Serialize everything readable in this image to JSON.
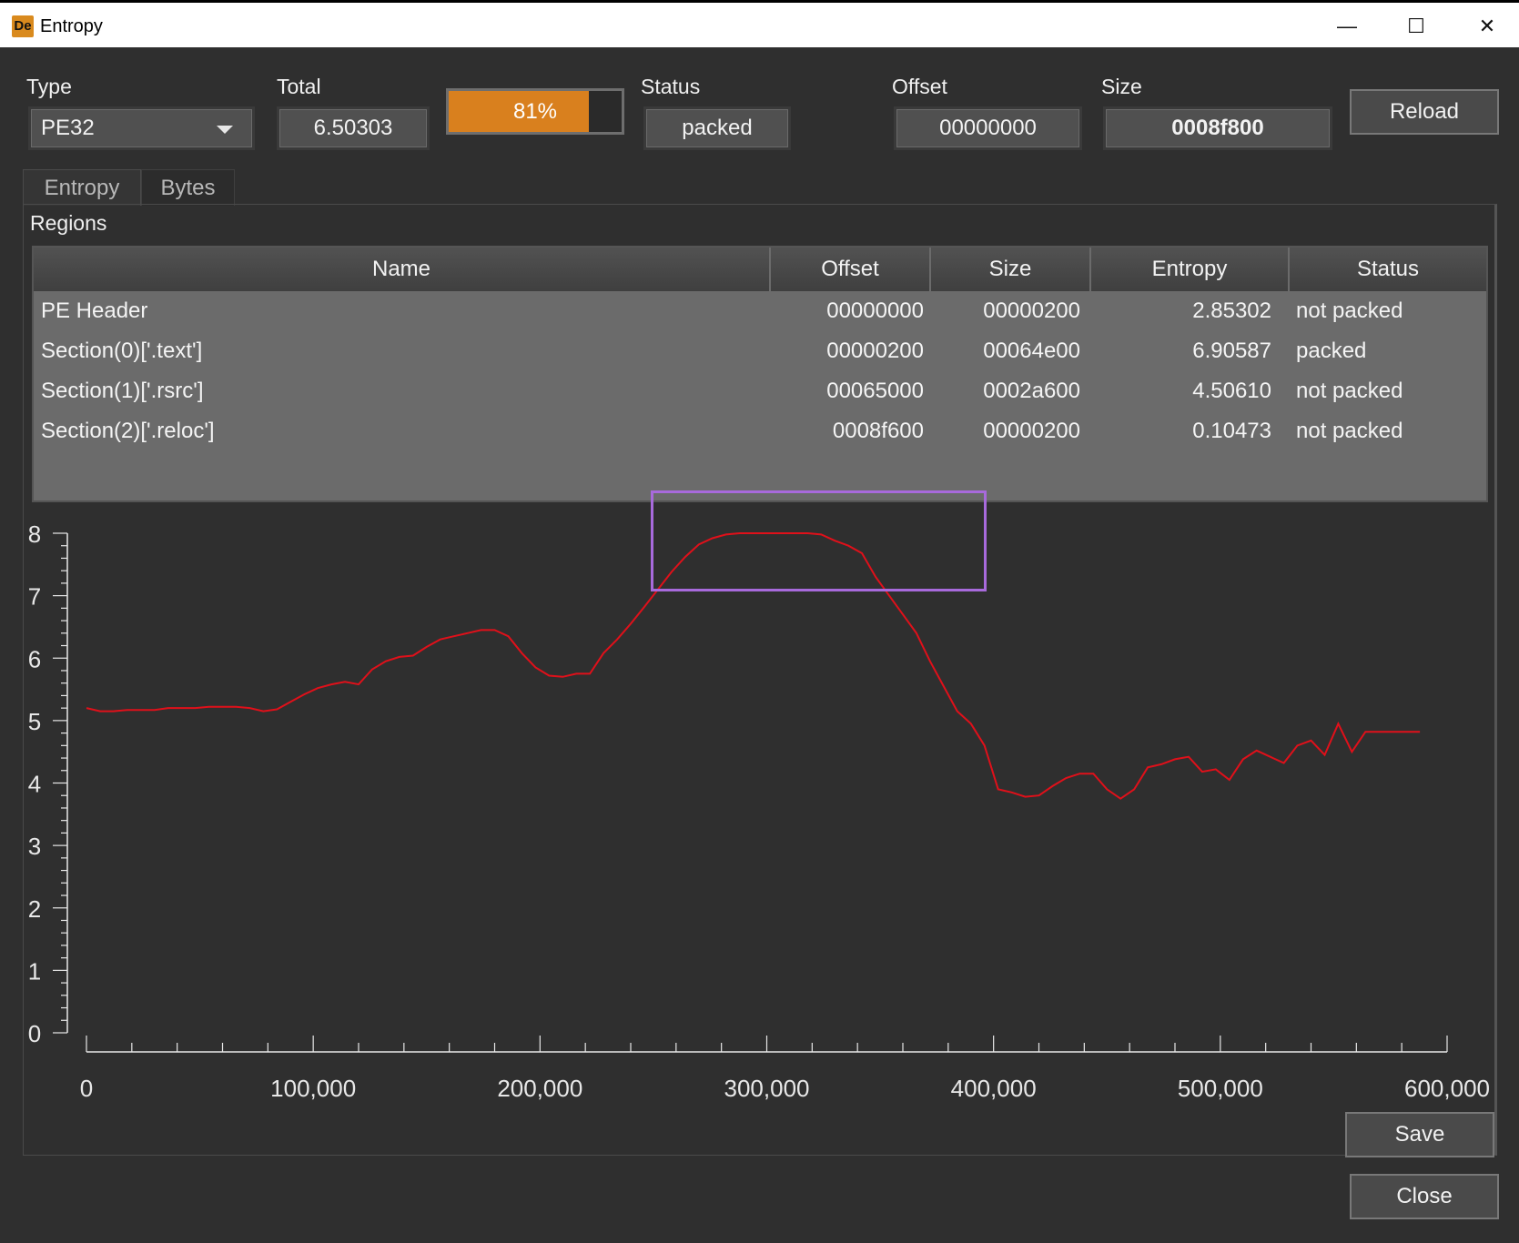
{
  "window": {
    "title": "Entropy",
    "app_icon_text": "De",
    "minimize_icon": "minimize-icon",
    "maximize_icon": "maximize-icon",
    "close_icon": "close-icon"
  },
  "top": {
    "type_label": "Type",
    "type_value": "PE32",
    "total_label": "Total",
    "total_value": "6.50303",
    "progress_value": 81,
    "progress_text": "81%",
    "status_label": "Status",
    "status_value": "packed",
    "offset_label": "Offset",
    "offset_value": "00000000",
    "size_label": "Size",
    "size_value": "0008f800",
    "reload_label": "Reload"
  },
  "tabs": [
    {
      "label": "Entropy",
      "active": true
    },
    {
      "label": "Bytes",
      "active": false
    }
  ],
  "regions": {
    "label": "Regions",
    "columns": [
      "Name",
      "Offset",
      "Size",
      "Entropy",
      "Status"
    ],
    "rows": [
      {
        "name": "PE Header",
        "offset": "00000000",
        "size": "00000200",
        "entropy": "2.85302",
        "status": "not packed"
      },
      {
        "name": "Section(0)['.text']",
        "offset": "00000200",
        "size": "00064e00",
        "entropy": "6.90587",
        "status": "packed"
      },
      {
        "name": "Section(1)['.rsrc']",
        "offset": "00065000",
        "size": "0002a600",
        "entropy": "4.50610",
        "status": "not packed"
      },
      {
        "name": "Section(2)['.reloc']",
        "offset": "0008f600",
        "size": "00000200",
        "entropy": "0.10473",
        "status": "not packed"
      }
    ]
  },
  "buttons": {
    "save_label": "Save",
    "close_label": "Close"
  },
  "colors": {
    "accent": "#d9801e",
    "line": "#e0101a",
    "highlight": "#a86adc"
  },
  "chart_data": {
    "type": "line",
    "xlim": [
      0,
      600000
    ],
    "ylim": [
      0,
      8
    ],
    "x_ticks": [
      "0",
      "100,000",
      "200,000",
      "300,000",
      "400,000",
      "500,000",
      "600,000"
    ],
    "y_ticks": [
      "0",
      "1",
      "2",
      "3",
      "4",
      "5",
      "6",
      "7",
      "8"
    ],
    "x": [
      0,
      6000,
      12000,
      18000,
      24000,
      30000,
      36000,
      42000,
      48000,
      54000,
      60000,
      66000,
      72000,
      78000,
      84000,
      90000,
      96000,
      102000,
      108000,
      114000,
      120000,
      126000,
      132000,
      138000,
      144000,
      150000,
      156000,
      162000,
      168000,
      174000,
      180000,
      186000,
      192000,
      198000,
      204000,
      210000,
      216000,
      222000,
      228000,
      234000,
      240000,
      246000,
      252000,
      258000,
      264000,
      270000,
      276000,
      282000,
      288000,
      294000,
      300000,
      306000,
      312000,
      318000,
      324000,
      330000,
      336000,
      342000,
      348000,
      354000,
      360000,
      366000,
      372000,
      378000,
      384000,
      390000,
      396000,
      402000,
      408000,
      414000,
      420000,
      426000,
      432000,
      438000,
      444000,
      450000,
      456000,
      462000,
      468000,
      474000,
      480000,
      486000,
      492000,
      498000,
      504000,
      510000,
      516000,
      522000,
      528000,
      534000,
      540000,
      546000,
      552000,
      558000,
      564000,
      570000,
      576000,
      582000,
      588000
    ],
    "y": [
      5.2,
      5.15,
      5.15,
      5.17,
      5.17,
      5.17,
      5.2,
      5.2,
      5.2,
      5.22,
      5.22,
      5.22,
      5.2,
      5.15,
      5.18,
      5.3,
      5.42,
      5.52,
      5.58,
      5.62,
      5.58,
      5.82,
      5.95,
      6.02,
      6.04,
      6.18,
      6.3,
      6.35,
      6.4,
      6.45,
      6.45,
      6.35,
      6.08,
      5.85,
      5.72,
      5.7,
      5.75,
      5.75,
      6.08,
      6.3,
      6.55,
      6.82,
      7.1,
      7.38,
      7.62,
      7.82,
      7.92,
      7.98,
      8.0,
      8.0,
      8.0,
      8.0,
      8.0,
      8.0,
      7.98,
      7.88,
      7.8,
      7.68,
      7.3,
      7.0,
      6.7,
      6.4,
      5.95,
      5.55,
      5.15,
      4.95,
      4.6,
      3.9,
      3.85,
      3.78,
      3.8,
      3.95,
      4.08,
      4.15,
      4.15,
      3.9,
      3.75,
      3.9,
      4.25,
      4.3,
      4.38,
      4.42,
      4.18,
      4.22,
      4.05,
      4.38,
      4.52,
      4.42,
      4.32,
      4.6,
      4.68,
      4.45,
      4.95,
      4.5,
      4.82,
      4.82,
      4.82,
      4.82,
      4.82
    ]
  }
}
